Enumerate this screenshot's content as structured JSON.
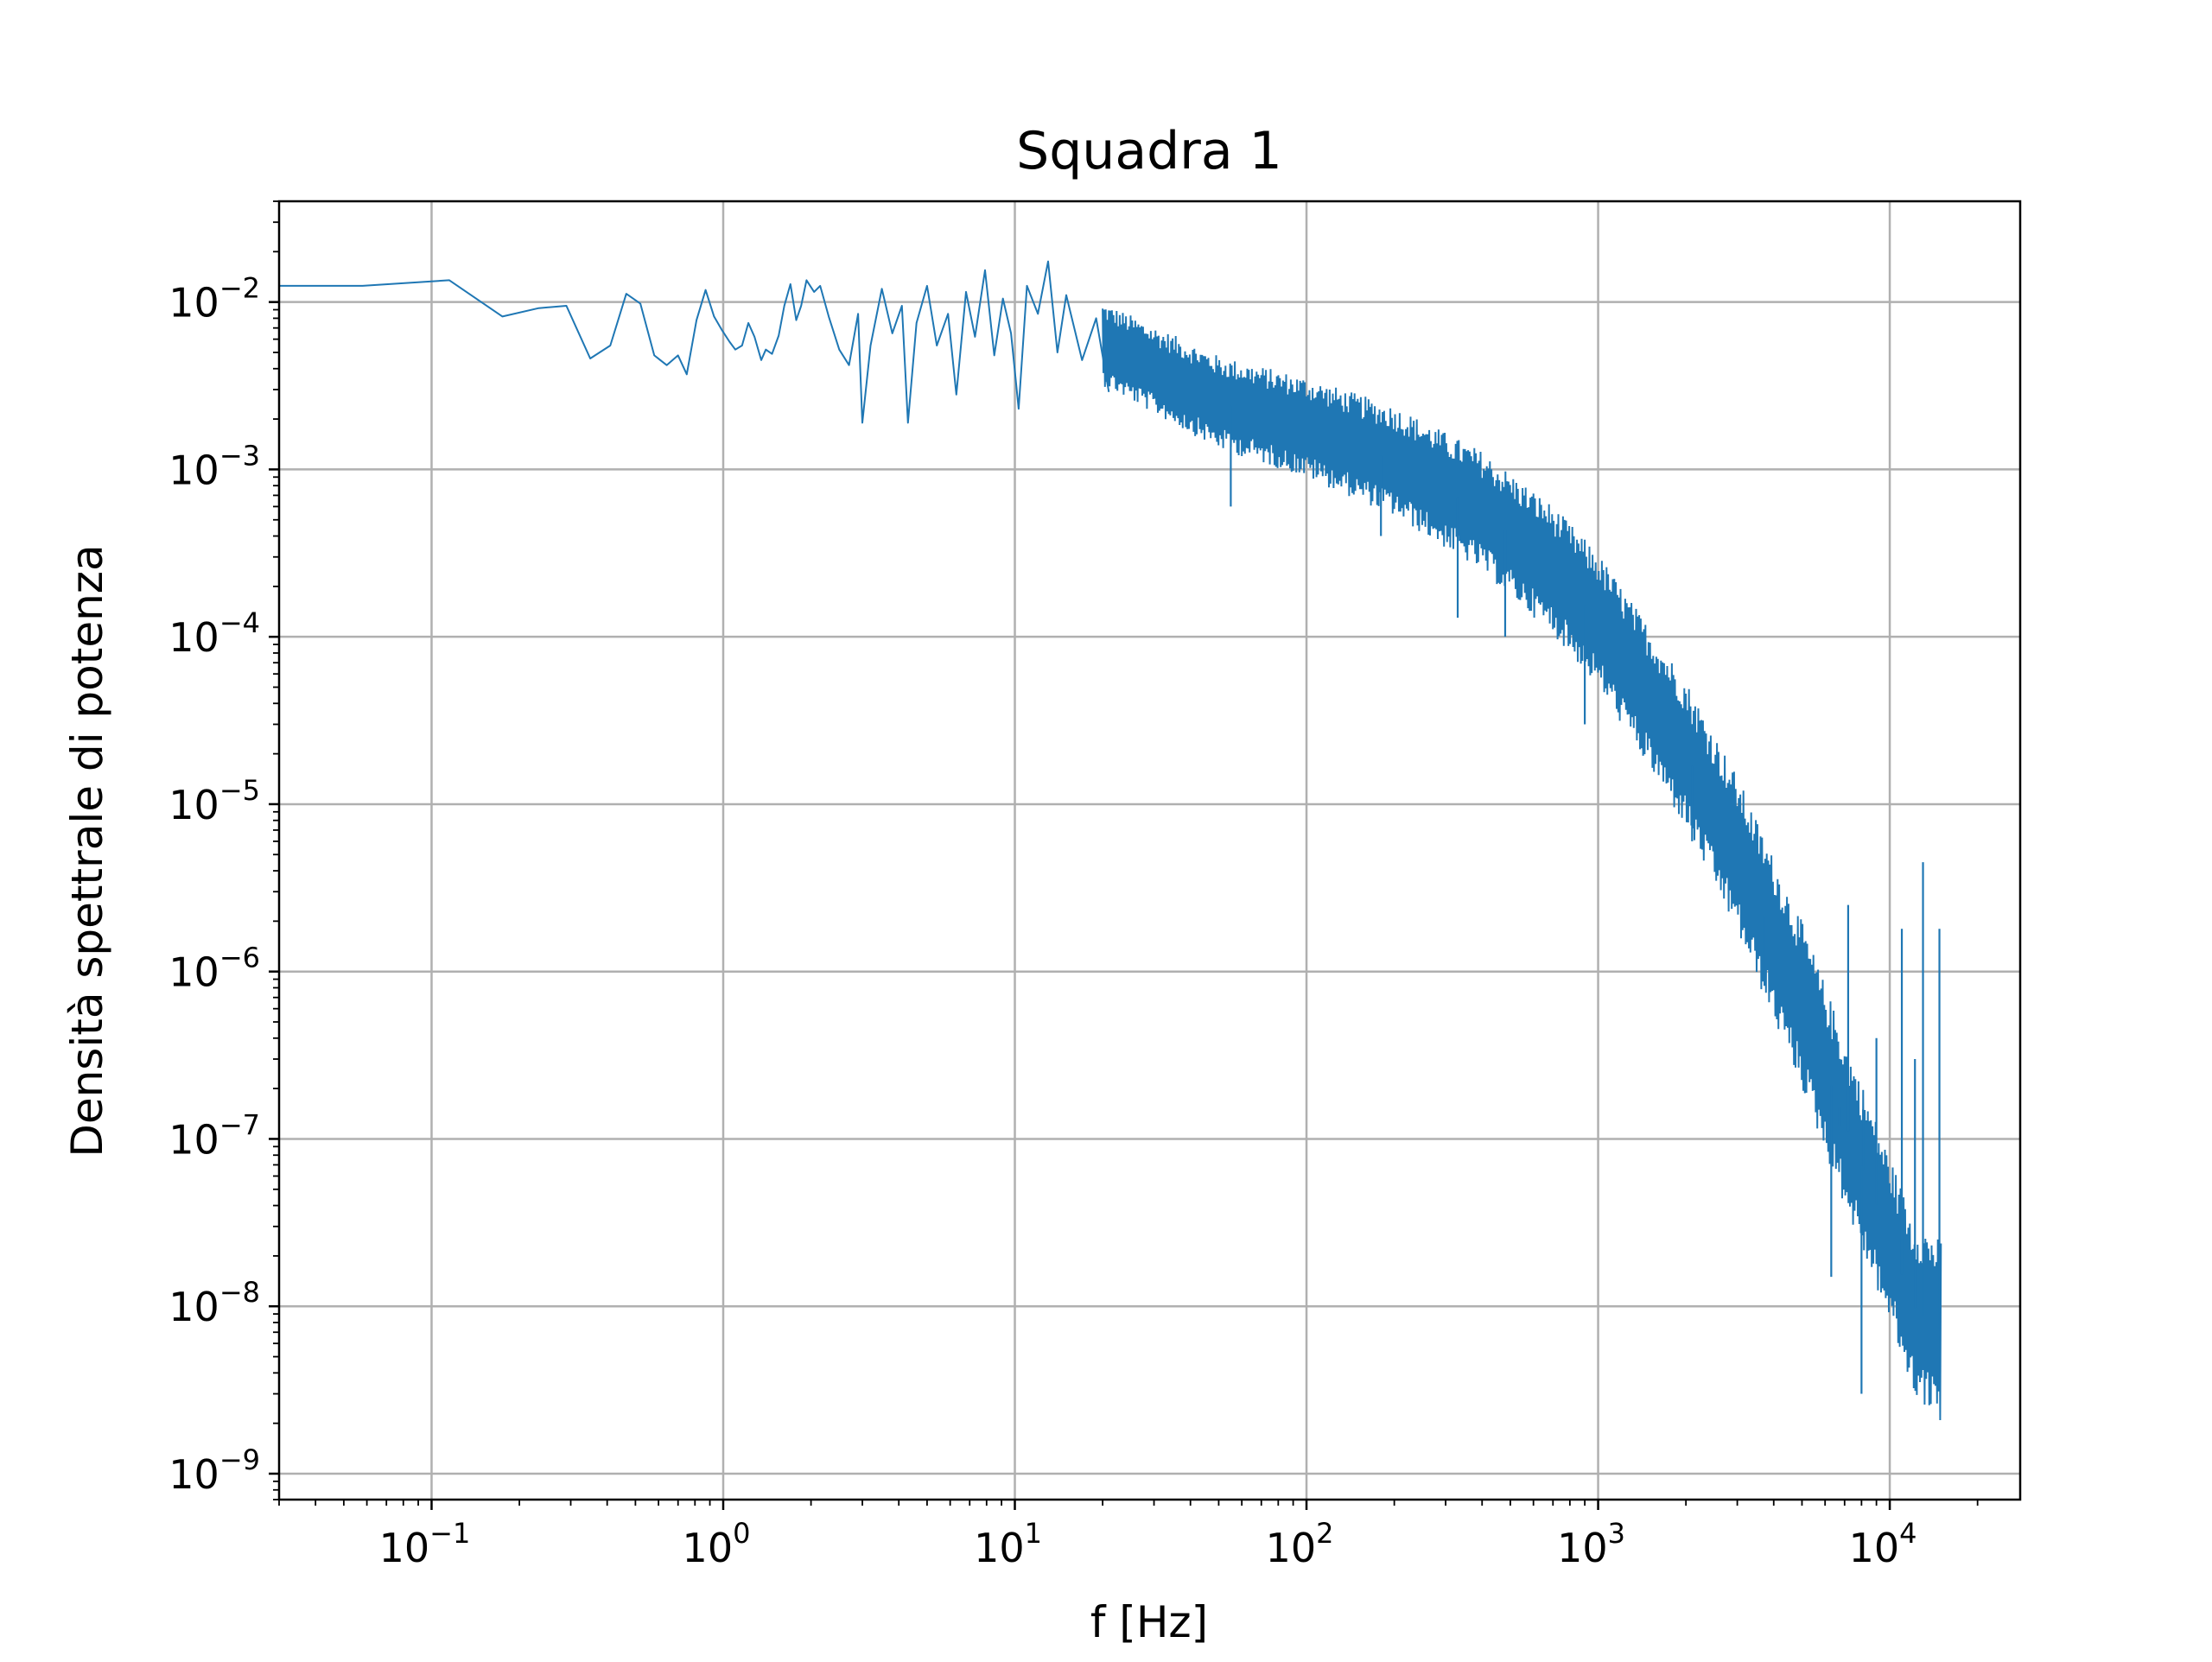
{
  "chart_data": {
    "type": "line",
    "title": "Squadra 1",
    "xlabel": "f [Hz]",
    "ylabel": "Densità spettrale di potenza",
    "x_scale": "log",
    "y_scale": "log",
    "xlim": [
      0.03,
      28000
    ],
    "ylim": [
      7e-10,
      0.04
    ],
    "grid": true,
    "color": "#1f77b4",
    "x_ticks": [
      {
        "value": 0.1,
        "base": "10",
        "exp": "−1"
      },
      {
        "value": 1,
        "base": "10",
        "exp": "0"
      },
      {
        "value": 10,
        "base": "10",
        "exp": "1"
      },
      {
        "value": 100,
        "base": "10",
        "exp": "2"
      },
      {
        "value": 1000,
        "base": "10",
        "exp": "3"
      },
      {
        "value": 10000,
        "base": "10",
        "exp": "4"
      }
    ],
    "y_ticks": [
      {
        "value": 0.01,
        "base": "10",
        "exp": "−2"
      },
      {
        "value": 0.001,
        "base": "10",
        "exp": "−3"
      },
      {
        "value": 0.0001,
        "base": "10",
        "exp": "−4"
      },
      {
        "value": 1e-05,
        "base": "10",
        "exp": "−5"
      },
      {
        "value": 1e-06,
        "base": "10",
        "exp": "−6"
      },
      {
        "value": 1e-07,
        "base": "10",
        "exp": "−7"
      },
      {
        "value": 1e-08,
        "base": "10",
        "exp": "−8"
      },
      {
        "value": 1e-09,
        "base": "10",
        "exp": "−9"
      }
    ],
    "series": [
      {
        "points": [
          [
            0.029,
            0.0125
          ],
          [
            0.058,
            0.0125
          ],
          [
            0.115,
            0.0135
          ],
          [
            0.175,
            0.0082
          ],
          [
            0.233,
            0.0092
          ],
          [
            0.29,
            0.0095
          ],
          [
            0.35,
            0.0046
          ],
          [
            0.41,
            0.0055
          ],
          [
            0.465,
            0.0112
          ],
          [
            0.52,
            0.0098
          ],
          [
            0.58,
            0.0048
          ],
          [
            0.64,
            0.0042
          ],
          [
            0.7,
            0.0048
          ],
          [
            0.75,
            0.0037
          ],
          [
            0.81,
            0.0078
          ],
          [
            0.87,
            0.0118
          ],
          [
            0.93,
            0.0082
          ],
          [
            0.99,
            0.0068
          ],
          [
            1.05,
            0.0058
          ],
          [
            1.1,
            0.0052
          ],
          [
            1.16,
            0.0055
          ],
          [
            1.22,
            0.0075
          ],
          [
            1.28,
            0.0062
          ],
          [
            1.35,
            0.0045
          ],
          [
            1.4,
            0.0052
          ],
          [
            1.47,
            0.0049
          ],
          [
            1.55,
            0.0063
          ],
          [
            1.62,
            0.0095
          ],
          [
            1.7,
            0.0128
          ],
          [
            1.78,
            0.0078
          ],
          [
            1.85,
            0.0095
          ],
          [
            1.93,
            0.0135
          ],
          [
            2.05,
            0.0115
          ],
          [
            2.15,
            0.0125
          ],
          [
            2.3,
            0.0082
          ],
          [
            2.5,
            0.0052
          ],
          [
            2.7,
            0.0042
          ],
          [
            2.9,
            0.0085
          ],
          [
            3.0,
            0.0019
          ],
          [
            3.2,
            0.0055
          ],
          [
            3.5,
            0.012
          ],
          [
            3.8,
            0.0065
          ],
          [
            4.1,
            0.0095
          ],
          [
            4.3,
            0.0019
          ],
          [
            4.6,
            0.0075
          ],
          [
            5.0,
            0.0125
          ],
          [
            5.4,
            0.0055
          ],
          [
            5.9,
            0.0085
          ],
          [
            6.3,
            0.0028
          ],
          [
            6.8,
            0.0115
          ],
          [
            7.3,
            0.0062
          ],
          [
            7.9,
            0.0155
          ],
          [
            8.5,
            0.0048
          ],
          [
            9.1,
            0.0105
          ],
          [
            9.7,
            0.0065
          ],
          [
            10.3,
            0.0023
          ],
          [
            11,
            0.0125
          ],
          [
            12,
            0.0085
          ],
          [
            13,
            0.0175
          ],
          [
            14,
            0.005
          ],
          [
            15,
            0.011
          ],
          [
            17,
            0.0045
          ],
          [
            19,
            0.008
          ],
          [
            21,
            0.0029
          ]
        ],
        "band": {
          "x_start": 20,
          "x_end": 15000,
          "center_log10": [
            [
              20,
              -2.25
            ],
            [
              50,
              -2.6
            ],
            [
              100,
              -2.75
            ],
            [
              200,
              -2.95
            ],
            [
              400,
              -3.25
            ],
            [
              700,
              -3.6
            ],
            [
              1000,
              -3.9
            ],
            [
              2000,
              -4.7
            ],
            [
              3000,
              -5.3
            ],
            [
              5000,
              -6.2
            ],
            [
              7000,
              -6.9
            ],
            [
              10000,
              -7.6
            ],
            [
              12000,
              -8.0
            ],
            [
              15000,
              -8.15
            ]
          ],
          "halfwidth_log10": [
            [
              20,
              0.25
            ],
            [
              100,
              0.3
            ],
            [
              1000,
              0.4
            ],
            [
              5000,
              0.5
            ],
            [
              10000,
              0.5
            ],
            [
              15000,
              0.55
            ]
          ]
        },
        "spikes": [
          [
            7200,
            2.5e-06
          ],
          [
            9000,
            4e-07
          ],
          [
            11000,
            1.8e-06
          ],
          [
            13000,
            4.5e-06
          ],
          [
            14800,
            1.8e-06
          ],
          [
            6700,
            1.2e-07
          ],
          [
            8100,
            1.5e-07
          ],
          [
            12200,
            3e-07
          ]
        ],
        "dips": [
          [
            55,
            0.0006
          ],
          [
            180,
            0.0004
          ],
          [
            330,
            0.00013
          ],
          [
            480,
            0.0001
          ],
          [
            900,
            3e-05
          ],
          [
            2100,
            6e-06
          ],
          [
            3700,
            1e-06
          ],
          [
            6300,
            1.5e-08
          ],
          [
            8000,
            3e-09
          ]
        ]
      }
    ]
  }
}
